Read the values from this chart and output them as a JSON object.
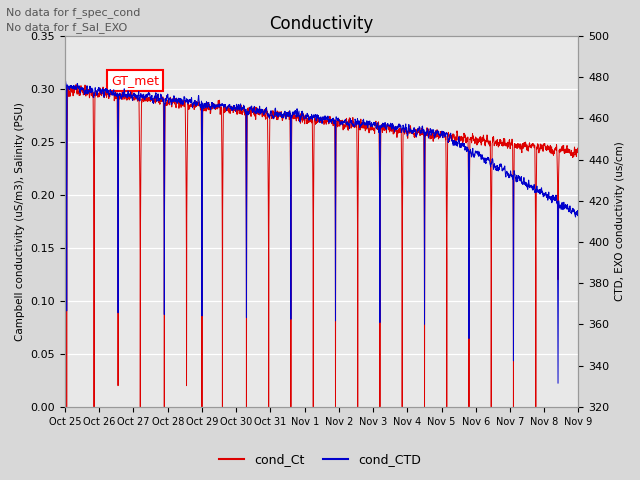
{
  "title": "Conductivity",
  "ylabel_left": "Campbell conductivity (uS/m3), Salinity (PSU)",
  "ylabel_right": "CTD, EXO conductivity (us/cm)",
  "ylim_left": [
    0.0,
    0.35
  ],
  "ylim_right": [
    320,
    500
  ],
  "yticks_left": [
    0.0,
    0.05,
    0.1,
    0.15,
    0.2,
    0.25,
    0.3,
    0.35
  ],
  "yticks_right": [
    320,
    340,
    360,
    380,
    400,
    420,
    440,
    460,
    480,
    500
  ],
  "annotation1": "No data for f_spec_cond",
  "annotation2": "No data for f_Sal_EXO",
  "legend_box_label": "GT_met",
  "legend_line1": "cond_Ct",
  "legend_line2": "cond_CTD",
  "color_red": "#dd0000",
  "color_blue": "#0000cc",
  "background_color": "#d8d8d8",
  "plot_bg_color": "#e8e8e8",
  "grid_color": "#ffffff",
  "xlim": [
    0,
    15
  ],
  "xtick_labels": [
    "Oct 25",
    "Oct 26",
    "Oct 27",
    "Oct 28",
    "Oct 29",
    "Oct 30",
    "Oct 31",
    "Nov 1",
    "Nov 2",
    "Nov 3",
    "Nov 4",
    "Nov 5",
    "Nov 6",
    "Nov 7",
    "Nov 8",
    "Nov 9"
  ]
}
